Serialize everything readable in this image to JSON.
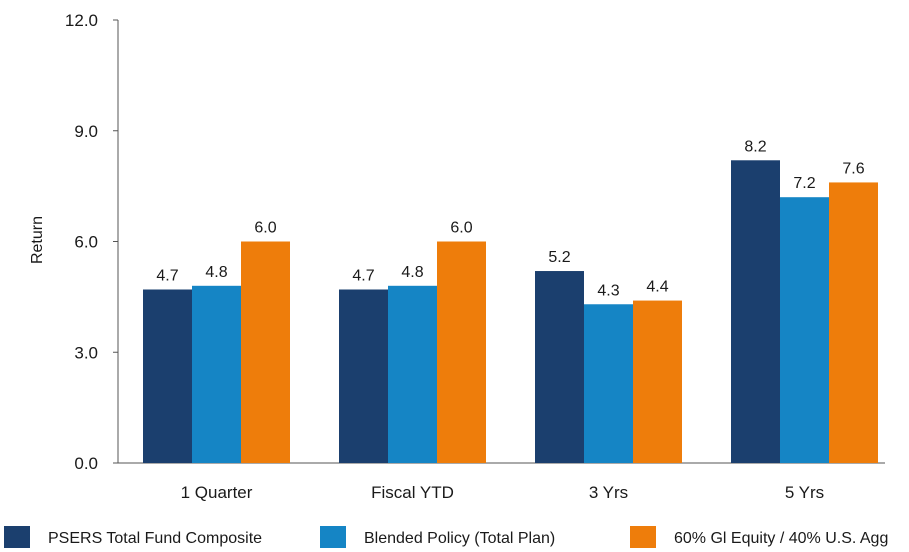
{
  "chart_data": {
    "type": "bar",
    "ylabel": "Return",
    "xlabel": "",
    "ylim": [
      0,
      12
    ],
    "yticks": [
      "0.0",
      "3.0",
      "6.0",
      "9.0",
      "12.0"
    ],
    "categories": [
      "1 Quarter",
      "Fiscal YTD",
      "3 Yrs",
      "5 Yrs"
    ],
    "series": [
      {
        "name": "PSERS Total Fund Composite",
        "color": "#1b3f6e",
        "values": [
          4.7,
          4.7,
          5.2,
          8.2
        ]
      },
      {
        "name": "Blended Policy (Total Plan)",
        "color": "#1585c5",
        "values": [
          4.8,
          4.8,
          4.3,
          7.2
        ]
      },
      {
        "name": "60% Gl Equity / 40% U.S. Agg",
        "color": "#ee7d0b",
        "values": [
          6.0,
          6.0,
          4.4,
          7.6
        ]
      }
    ],
    "legend_position": "bottom",
    "grid": false
  }
}
